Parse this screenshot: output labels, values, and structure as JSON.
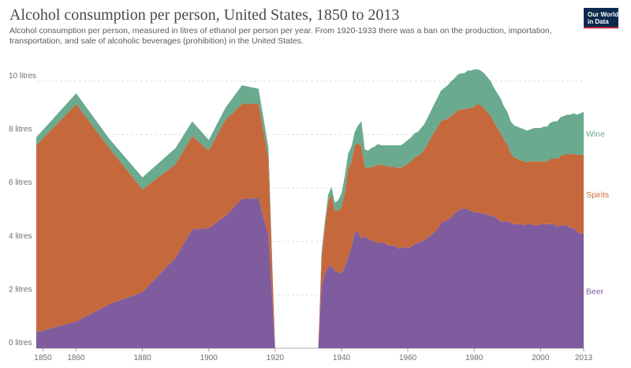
{
  "title": "Alcohol consumption per person, United States, 1850 to 2013",
  "subtitle": "Alcohol consumption per person, measured in litres of ethanol per person per year. From 1920-1933 there was a ban on the production, importation, transportation, and sale of alcoholic beverages (prohibition) in the United States.",
  "logo": {
    "line1": "Our World",
    "line2": "in Data"
  },
  "chart_data": {
    "type": "area",
    "stacked": true,
    "title": "Alcohol consumption per person, United States, 1850 to 2013",
    "xlabel": "",
    "ylabel": "",
    "xlim": [
      1848,
      2013
    ],
    "ylim": [
      0,
      10.5
    ],
    "grid": "horizontal",
    "legend": "right, inline labels",
    "y_ticks": [
      {
        "value": 0,
        "label": "0 litres"
      },
      {
        "value": 2,
        "label": "2 litres"
      },
      {
        "value": 4,
        "label": "4 litres"
      },
      {
        "value": 6,
        "label": "6 litres"
      },
      {
        "value": 8,
        "label": "8 litres"
      },
      {
        "value": 10,
        "label": "10 litres"
      }
    ],
    "x_ticks": [
      {
        "value": 1850,
        "label": "1850"
      },
      {
        "value": 1860,
        "label": "1860"
      },
      {
        "value": 1880,
        "label": "1880"
      },
      {
        "value": 1900,
        "label": "1900"
      },
      {
        "value": 1920,
        "label": "1920"
      },
      {
        "value": 1940,
        "label": "1940"
      },
      {
        "value": 1960,
        "label": "1960"
      },
      {
        "value": 1980,
        "label": "1980"
      },
      {
        "value": 2000,
        "label": "2000"
      },
      {
        "value": 2013,
        "label": "2013"
      }
    ],
    "x": [
      1848,
      1860,
      1870,
      1880,
      1890,
      1895,
      1900,
      1905,
      1910,
      1915,
      1918,
      1920,
      1933,
      1934,
      1935,
      1936,
      1937,
      1938,
      1939,
      1940,
      1941,
      1942,
      1943,
      1944,
      1945,
      1946,
      1947,
      1948,
      1949,
      1950,
      1951,
      1952,
      1953,
      1954,
      1955,
      1956,
      1957,
      1958,
      1959,
      1960,
      1961,
      1962,
      1963,
      1964,
      1965,
      1966,
      1967,
      1968,
      1969,
      1970,
      1971,
      1972,
      1973,
      1974,
      1975,
      1976,
      1977,
      1978,
      1979,
      1980,
      1981,
      1982,
      1983,
      1984,
      1985,
      1986,
      1987,
      1988,
      1989,
      1990,
      1991,
      1992,
      1993,
      1994,
      1995,
      1996,
      1997,
      1998,
      1999,
      2000,
      2001,
      2002,
      2003,
      2004,
      2005,
      2006,
      2007,
      2008,
      2009,
      2010,
      2011,
      2012,
      2013
    ],
    "series": [
      {
        "name": "Beer",
        "color": "#7f5c9e",
        "values": [
          0.6,
          1.0,
          1.65,
          2.1,
          3.4,
          4.45,
          4.5,
          4.95,
          5.6,
          5.62,
          4.2,
          0,
          0,
          2.3,
          2.8,
          3.05,
          3.1,
          2.9,
          2.85,
          2.8,
          3.05,
          3.4,
          3.8,
          4.3,
          4.4,
          4.1,
          4.2,
          4.1,
          4.05,
          4.0,
          3.95,
          3.95,
          3.95,
          3.85,
          3.85,
          3.85,
          3.75,
          3.75,
          3.8,
          3.75,
          3.8,
          3.9,
          3.95,
          4.0,
          4.05,
          4.15,
          4.25,
          4.35,
          4.45,
          4.7,
          4.75,
          4.8,
          4.9,
          5.05,
          5.15,
          5.2,
          5.25,
          5.2,
          5.15,
          5.1,
          5.1,
          5.05,
          5.05,
          5.0,
          4.95,
          4.95,
          4.85,
          4.75,
          4.75,
          4.75,
          4.7,
          4.65,
          4.65,
          4.65,
          4.6,
          4.65,
          4.65,
          4.6,
          4.6,
          4.65,
          4.65,
          4.65,
          4.65,
          4.65,
          4.55,
          4.6,
          4.6,
          4.6,
          4.5,
          4.5,
          4.35,
          4.3,
          4.3
        ]
      },
      {
        "name": "Spirits",
        "color": "#c5693d",
        "values": [
          7.0,
          8.15,
          5.85,
          3.85,
          3.5,
          3.5,
          2.9,
          3.6,
          3.55,
          3.55,
          2.9,
          0,
          0,
          1.1,
          1.75,
          2.45,
          2.65,
          2.25,
          2.3,
          2.5,
          2.8,
          3.3,
          3.2,
          3.3,
          3.3,
          3.45,
          2.6,
          2.65,
          2.75,
          2.8,
          2.95,
          2.9,
          2.9,
          2.95,
          2.95,
          2.95,
          3.0,
          3.0,
          3.05,
          3.15,
          3.2,
          3.25,
          3.25,
          3.3,
          3.4,
          3.5,
          3.65,
          3.75,
          3.85,
          3.8,
          3.8,
          3.8,
          3.8,
          3.75,
          3.75,
          3.75,
          3.7,
          3.8,
          3.85,
          3.95,
          4.05,
          4.05,
          3.95,
          3.85,
          3.75,
          3.5,
          3.4,
          3.3,
          3.05,
          2.9,
          2.6,
          2.5,
          2.45,
          2.4,
          2.4,
          2.3,
          2.35,
          2.4,
          2.4,
          2.35,
          2.35,
          2.35,
          2.45,
          2.45,
          2.55,
          2.6,
          2.65,
          2.7,
          2.75,
          2.8,
          2.9,
          2.95,
          2.95
        ]
      },
      {
        "name": "Wine",
        "color": "#6aaa8f",
        "values": [
          0.3,
          0.4,
          0.35,
          0.45,
          0.6,
          0.55,
          0.4,
          0.45,
          0.7,
          0.55,
          0.4,
          0,
          0,
          0.2,
          0.2,
          0.25,
          0.3,
          0.3,
          0.4,
          0.5,
          0.6,
          0.6,
          0.55,
          0.5,
          0.65,
          0.95,
          0.65,
          0.65,
          0.7,
          0.75,
          0.75,
          0.75,
          0.75,
          0.8,
          0.8,
          0.8,
          0.85,
          0.85,
          0.85,
          0.9,
          0.9,
          0.9,
          0.9,
          0.95,
          0.95,
          1.0,
          1.0,
          1.05,
          1.1,
          1.15,
          1.2,
          1.25,
          1.3,
          1.3,
          1.35,
          1.35,
          1.35,
          1.4,
          1.4,
          1.4,
          1.3,
          1.3,
          1.3,
          1.3,
          1.3,
          1.3,
          1.3,
          1.3,
          1.25,
          1.2,
          1.2,
          1.2,
          1.2,
          1.2,
          1.2,
          1.2,
          1.2,
          1.25,
          1.25,
          1.25,
          1.3,
          1.3,
          1.35,
          1.4,
          1.4,
          1.45,
          1.45,
          1.45,
          1.5,
          1.5,
          1.5,
          1.55,
          1.6
        ]
      }
    ]
  }
}
